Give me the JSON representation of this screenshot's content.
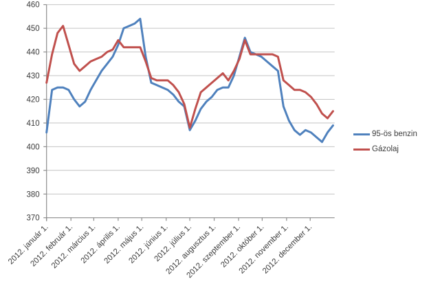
{
  "chart_data": {
    "type": "line",
    "title": "",
    "grid": "horizontal",
    "legend_position": "right",
    "x_axis": {
      "domain_days": [
        0,
        366
      ],
      "tick_days": [
        0,
        31,
        60,
        91,
        121,
        152,
        182,
        213,
        244,
        274,
        305,
        335
      ],
      "tick_labels": [
        "2012. január 1.",
        "2012. február 1.",
        "2012. március 1.",
        "2012. április 1.",
        "2012. május 1.",
        "2012. június 1.",
        "2012. július 1.",
        "2012. augusztus 1.",
        "2012. szeptember 1.",
        "2012. október 1.",
        "2012. november 1.",
        "2012. december 1."
      ]
    },
    "y_axis": {
      "min": 370,
      "max": 460,
      "step": 10,
      "tick_labels": [
        "370",
        "380",
        "390",
        "400",
        "410",
        "420",
        "430",
        "440",
        "450",
        "460"
      ]
    },
    "series": [
      {
        "name": "95-ös benzin",
        "color": "#4F81BD",
        "days": [
          0,
          7,
          14,
          21,
          28,
          35,
          42,
          49,
          56,
          63,
          70,
          77,
          84,
          91,
          98,
          105,
          112,
          119,
          126,
          133,
          140,
          147,
          154,
          161,
          168,
          175,
          182,
          189,
          196,
          203,
          210,
          217,
          224,
          231,
          238,
          245,
          252,
          259,
          266,
          273,
          280,
          287,
          294,
          301,
          308,
          315,
          322,
          329,
          336,
          343,
          350,
          357,
          364
        ],
        "values": [
          406,
          424,
          425,
          425,
          424,
          420,
          417,
          419,
          424,
          428,
          432,
          435,
          438,
          443,
          450,
          451,
          452,
          454,
          438,
          427,
          426,
          425,
          424,
          422,
          419,
          417,
          407,
          411,
          416,
          419,
          421,
          424,
          425,
          425,
          430,
          438,
          446,
          440,
          439,
          438,
          436,
          434,
          432,
          417,
          411,
          407,
          405,
          407,
          406,
          404,
          402,
          406,
          409
        ]
      },
      {
        "name": "Gázolaj",
        "color": "#C0504D",
        "days": [
          0,
          7,
          14,
          21,
          28,
          35,
          42,
          49,
          56,
          63,
          70,
          77,
          84,
          91,
          98,
          105,
          112,
          119,
          126,
          133,
          140,
          147,
          154,
          161,
          168,
          175,
          182,
          189,
          196,
          203,
          210,
          217,
          224,
          231,
          238,
          245,
          252,
          259,
          266,
          273,
          280,
          287,
          294,
          301,
          308,
          315,
          322,
          329,
          336,
          343,
          350,
          357,
          364
        ],
        "values": [
          427,
          439,
          448,
          451,
          443,
          435,
          432,
          434,
          436,
          437,
          438,
          440,
          441,
          445,
          442,
          442,
          442,
          442,
          436,
          429,
          428,
          428,
          428,
          426,
          423,
          418,
          408,
          416,
          423,
          425,
          427,
          429,
          431,
          428,
          432,
          437,
          445,
          439,
          439,
          439,
          439,
          439,
          438,
          428,
          426,
          424,
          424,
          423,
          421,
          418,
          414,
          412,
          415
        ]
      }
    ]
  },
  "colors": {
    "gridline": "#c3c3c3",
    "axis": "#8c8c8c",
    "text": "#3b3b3b",
    "background": "#ffffff"
  }
}
